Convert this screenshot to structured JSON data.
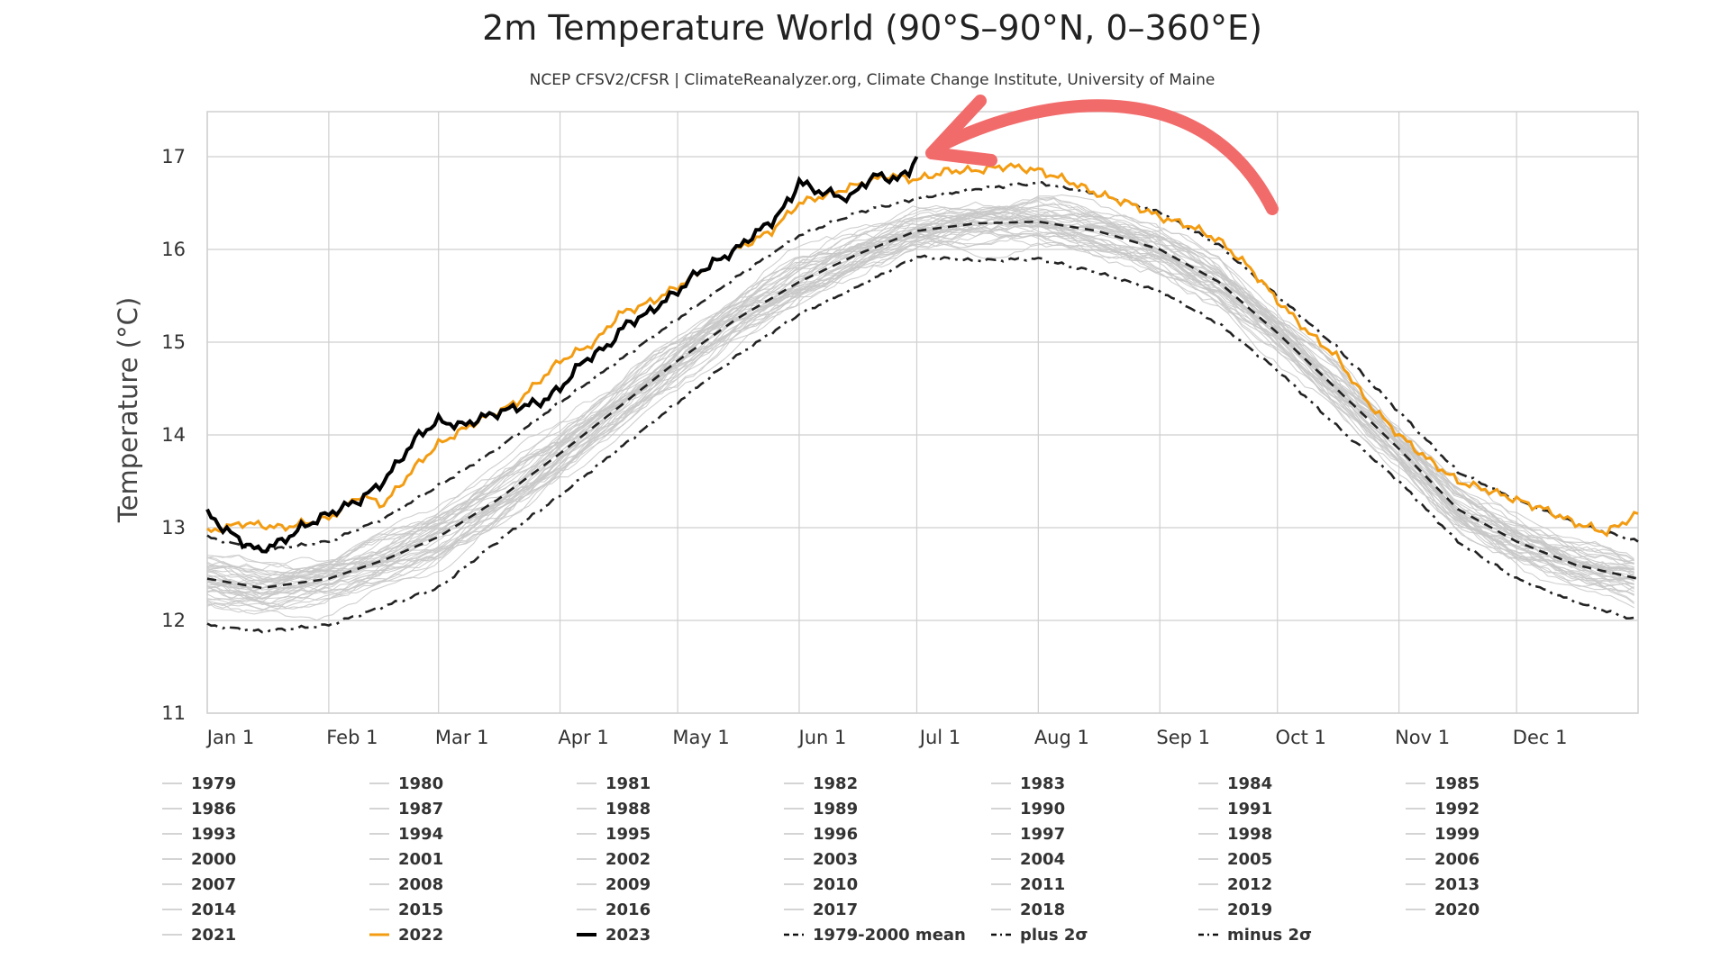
{
  "title": "2m Temperature World (90°S–90°N, 0–360°E)",
  "subtitle": "NCEP CFSV2/CFSR | ClimateReanalyzer.org, Climate Change Institute, University of Maine",
  "colors": {
    "background_years": "#c8c8c8",
    "y2022": "#f39c12",
    "y2023": "#000000",
    "mean": "#222222",
    "grid": "#cfcfcf",
    "annotation_arrow": "#f26b6b"
  },
  "chart_data": {
    "type": "line",
    "xlabel": "",
    "ylabel": "Temperature (°C)",
    "ylim": [
      11,
      17.5
    ],
    "y_ticks": [
      11,
      12,
      13,
      14,
      15,
      16,
      17
    ],
    "xlim": [
      1,
      366
    ],
    "x_tick_labels": [
      {
        "day": 1,
        "label": "Jan 1"
      },
      {
        "day": 32,
        "label": "Feb 1"
      },
      {
        "day": 60,
        "label": "Mar 1"
      },
      {
        "day": 91,
        "label": "Apr 1"
      },
      {
        "day": 121,
        "label": "May 1"
      },
      {
        "day": 152,
        "label": "Jun 1"
      },
      {
        "day": 182,
        "label": "Jul 1"
      },
      {
        "day": 213,
        "label": "Aug 1"
      },
      {
        "day": 244,
        "label": "Sep 1"
      },
      {
        "day": 274,
        "label": "Oct 1"
      },
      {
        "day": 305,
        "label": "Nov 1"
      },
      {
        "day": 335,
        "label": "Dec 1"
      }
    ],
    "grid": true,
    "legend_position": "bottom",
    "background_years": [
      "1979",
      "1980",
      "1981",
      "1982",
      "1983",
      "1984",
      "1985",
      "1986",
      "1987",
      "1988",
      "1989",
      "1990",
      "1991",
      "1992",
      "1993",
      "1994",
      "1995",
      "1996",
      "1997",
      "1998",
      "1999",
      "2000",
      "2001",
      "2002",
      "2003",
      "2004",
      "2005",
      "2006",
      "2007",
      "2008",
      "2009",
      "2010",
      "2011",
      "2012",
      "2013",
      "2014",
      "2015",
      "2016",
      "2017",
      "2018",
      "2019",
      "2020",
      "2021"
    ],
    "series": [
      {
        "name": "1979-2000 mean",
        "style": "dashed",
        "x": [
          1,
          15,
          32,
          46,
          60,
          75,
          91,
          106,
          121,
          136,
          152,
          167,
          182,
          197,
          213,
          228,
          244,
          259,
          274,
          289,
          305,
          320,
          335,
          350,
          366
        ],
        "y": [
          12.45,
          12.35,
          12.45,
          12.65,
          12.9,
          13.3,
          13.8,
          14.3,
          14.8,
          15.25,
          15.65,
          15.95,
          16.2,
          16.28,
          16.3,
          16.2,
          16.0,
          15.65,
          15.1,
          14.5,
          13.85,
          13.2,
          12.85,
          12.6,
          12.45
        ]
      },
      {
        "name": "plus 2σ",
        "style": "dash-dot",
        "x": [
          1,
          15,
          32,
          46,
          60,
          75,
          91,
          106,
          121,
          136,
          152,
          167,
          182,
          197,
          213,
          228,
          244,
          259,
          274,
          289,
          305,
          320,
          335,
          350,
          366
        ],
        "y": [
          12.9,
          12.75,
          12.85,
          13.1,
          13.45,
          13.85,
          14.35,
          14.8,
          15.25,
          15.7,
          16.15,
          16.4,
          16.55,
          16.65,
          16.72,
          16.6,
          16.4,
          16.05,
          15.5,
          14.95,
          14.25,
          13.6,
          13.3,
          13.05,
          12.85
        ]
      },
      {
        "name": "minus 2σ",
        "style": "dash-dot",
        "x": [
          1,
          15,
          32,
          46,
          60,
          75,
          91,
          106,
          121,
          136,
          152,
          167,
          182,
          197,
          213,
          228,
          244,
          259,
          274,
          289,
          305,
          320,
          335,
          350,
          366
        ],
        "y": [
          11.95,
          11.88,
          11.95,
          12.15,
          12.35,
          12.85,
          13.35,
          13.85,
          14.35,
          14.85,
          15.3,
          15.6,
          15.92,
          15.88,
          15.9,
          15.75,
          15.55,
          15.2,
          14.7,
          14.1,
          13.5,
          12.85,
          12.45,
          12.2,
          12.0
        ]
      },
      {
        "name": "2022",
        "x": [
          1,
          10,
          20,
          32,
          40,
          46,
          55,
          60,
          70,
          80,
          91,
          100,
          106,
          115,
          121,
          130,
          136,
          145,
          152,
          160,
          167,
          175,
          182,
          190,
          197,
          205,
          213,
          220,
          228,
          236,
          244,
          252,
          259,
          267,
          274,
          282,
          289,
          297,
          305,
          312,
          320,
          328,
          335,
          342,
          350,
          358,
          366
        ],
        "y": [
          12.95,
          13.05,
          13.0,
          13.1,
          13.35,
          13.25,
          13.7,
          13.9,
          14.15,
          14.35,
          14.8,
          15.0,
          15.3,
          15.45,
          15.6,
          15.85,
          16.0,
          16.2,
          16.5,
          16.6,
          16.7,
          16.8,
          16.75,
          16.85,
          16.85,
          16.9,
          16.85,
          16.75,
          16.6,
          16.5,
          16.35,
          16.25,
          16.1,
          15.8,
          15.45,
          15.1,
          14.85,
          14.35,
          14.0,
          13.75,
          13.5,
          13.4,
          13.3,
          13.2,
          13.05,
          12.95,
          13.15
        ]
      },
      {
        "name": "2023",
        "x": [
          1,
          5,
          10,
          14,
          20,
          25,
          32,
          40,
          46,
          55,
          60,
          66,
          72,
          80,
          86,
          91,
          97,
          103,
          108,
          113,
          121,
          126,
          130,
          136,
          140,
          145,
          150,
          152,
          155,
          160,
          165,
          168,
          172,
          177,
          180,
          182
        ],
        "y": [
          13.15,
          13.0,
          12.85,
          12.75,
          12.85,
          13.0,
          13.15,
          13.3,
          13.5,
          14.0,
          14.15,
          14.1,
          14.2,
          14.3,
          14.35,
          14.5,
          14.8,
          14.95,
          15.2,
          15.3,
          15.55,
          15.75,
          15.85,
          16.0,
          16.15,
          16.3,
          16.55,
          16.75,
          16.65,
          16.6,
          16.55,
          16.7,
          16.8,
          16.75,
          16.85,
          17.0
        ]
      }
    ]
  },
  "legend": [
    {
      "label": "1979",
      "style": "light"
    },
    {
      "label": "1980",
      "style": "light"
    },
    {
      "label": "1981",
      "style": "light"
    },
    {
      "label": "1982",
      "style": "light"
    },
    {
      "label": "1983",
      "style": "light"
    },
    {
      "label": "1984",
      "style": "light"
    },
    {
      "label": "1985",
      "style": "light"
    },
    {
      "label": "1986",
      "style": "light"
    },
    {
      "label": "1987",
      "style": "light"
    },
    {
      "label": "1988",
      "style": "light"
    },
    {
      "label": "1989",
      "style": "light"
    },
    {
      "label": "1990",
      "style": "light"
    },
    {
      "label": "1991",
      "style": "light"
    },
    {
      "label": "1992",
      "style": "light"
    },
    {
      "label": "1993",
      "style": "light"
    },
    {
      "label": "1994",
      "style": "light"
    },
    {
      "label": "1995",
      "style": "light"
    },
    {
      "label": "1996",
      "style": "light"
    },
    {
      "label": "1997",
      "style": "light"
    },
    {
      "label": "1998",
      "style": "light"
    },
    {
      "label": "1999",
      "style": "light"
    },
    {
      "label": "2000",
      "style": "light"
    },
    {
      "label": "2001",
      "style": "light"
    },
    {
      "label": "2002",
      "style": "light"
    },
    {
      "label": "2003",
      "style": "light"
    },
    {
      "label": "2004",
      "style": "light"
    },
    {
      "label": "2005",
      "style": "light"
    },
    {
      "label": "2006",
      "style": "light"
    },
    {
      "label": "2007",
      "style": "light"
    },
    {
      "label": "2008",
      "style": "light"
    },
    {
      "label": "2009",
      "style": "light"
    },
    {
      "label": "2010",
      "style": "light"
    },
    {
      "label": "2011",
      "style": "light"
    },
    {
      "label": "2012",
      "style": "light"
    },
    {
      "label": "2013",
      "style": "light"
    },
    {
      "label": "2014",
      "style": "light"
    },
    {
      "label": "2015",
      "style": "light"
    },
    {
      "label": "2016",
      "style": "light"
    },
    {
      "label": "2017",
      "style": "light"
    },
    {
      "label": "2018",
      "style": "light"
    },
    {
      "label": "2019",
      "style": "light"
    },
    {
      "label": "2020",
      "style": "light"
    },
    {
      "label": "2021",
      "style": "light"
    },
    {
      "label": "2022",
      "style": "orange"
    },
    {
      "label": "2023",
      "style": "black"
    },
    {
      "label": "1979-2000 mean",
      "style": "dashed"
    },
    {
      "label": "plus 2σ",
      "style": "dashdot"
    },
    {
      "label": "minus 2σ",
      "style": "dashdot"
    }
  ]
}
